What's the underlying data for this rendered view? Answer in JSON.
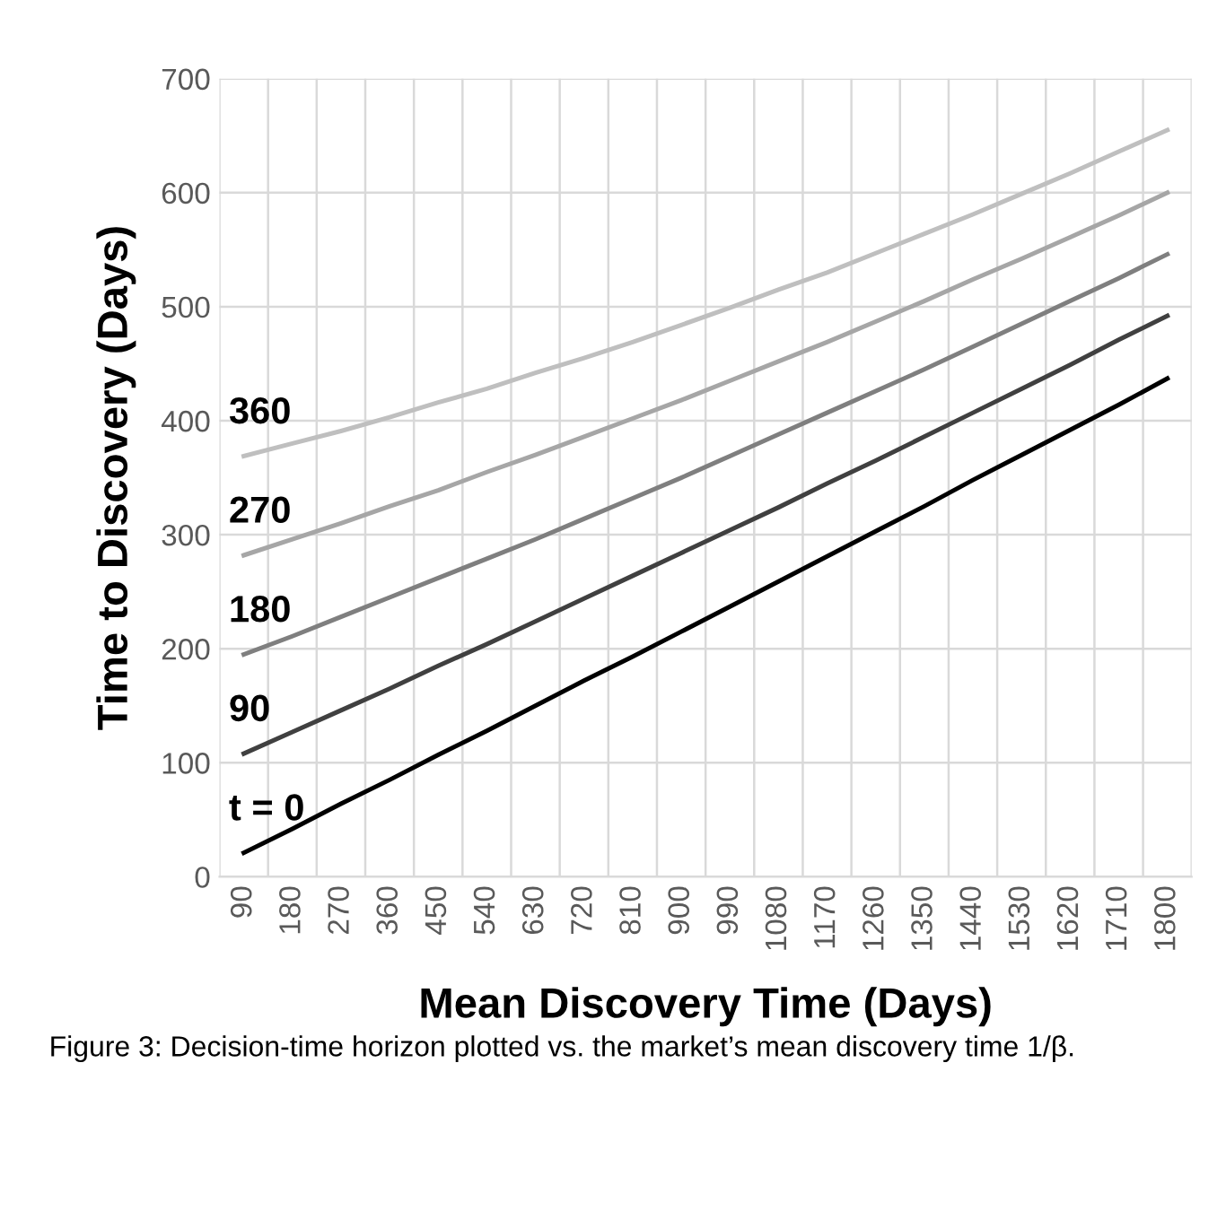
{
  "chart_data": {
    "type": "line",
    "xlabel": "Mean Discovery Time (Days)",
    "ylabel": "Time to Discovery (Days)",
    "categories": [
      "90",
      "180",
      "270",
      "360",
      "450",
      "540",
      "630",
      "720",
      "810",
      "900",
      "990",
      "1080",
      "1170",
      "1260",
      "1350",
      "1440",
      "1530",
      "1620",
      "1710",
      "1800"
    ],
    "series": [
      {
        "name": "t = 0",
        "color": "#000000",
        "values": [
          21,
          42,
          64,
          85,
          107,
          128,
          150,
          172,
          193,
          215,
          237,
          259,
          281,
          303,
          325,
          348,
          370,
          392,
          414,
          437
        ]
      },
      {
        "name": "90",
        "color": "#404040",
        "values": [
          108,
          127,
          146,
          165,
          185,
          204,
          224,
          244,
          264,
          284,
          304,
          324,
          345,
          365,
          386,
          407,
          428,
          449,
          471,
          492
        ]
      },
      {
        "name": "180",
        "color": "#7f7f7f",
        "values": [
          195,
          211,
          228,
          245,
          262,
          279,
          296,
          314,
          332,
          350,
          369,
          388,
          407,
          426,
          445,
          465,
          485,
          505,
          525,
          546
        ]
      },
      {
        "name": "270",
        "color": "#a6a6a6",
        "values": [
          282,
          296,
          310,
          325,
          339,
          355,
          370,
          386,
          402,
          418,
          435,
          452,
          469,
          487,
          505,
          524,
          542,
          561,
          580,
          600
        ]
      },
      {
        "name": "360",
        "color": "#bfbfbf",
        "values": [
          369,
          380,
          391,
          403,
          416,
          428,
          442,
          455,
          469,
          484,
          499,
          515,
          530,
          547,
          564,
          581,
          599,
          617,
          636,
          655
        ]
      }
    ],
    "ylim": [
      0,
      700
    ],
    "yticks": [
      0,
      100,
      200,
      300,
      400,
      500,
      600,
      700
    ],
    "grid": true,
    "legend": false,
    "marker": "none",
    "line_style": "solid",
    "annotations": [
      "Figure 3: Decision-time horizon plotted vs. the market’s mean discovery time 1/β."
    ]
  }
}
